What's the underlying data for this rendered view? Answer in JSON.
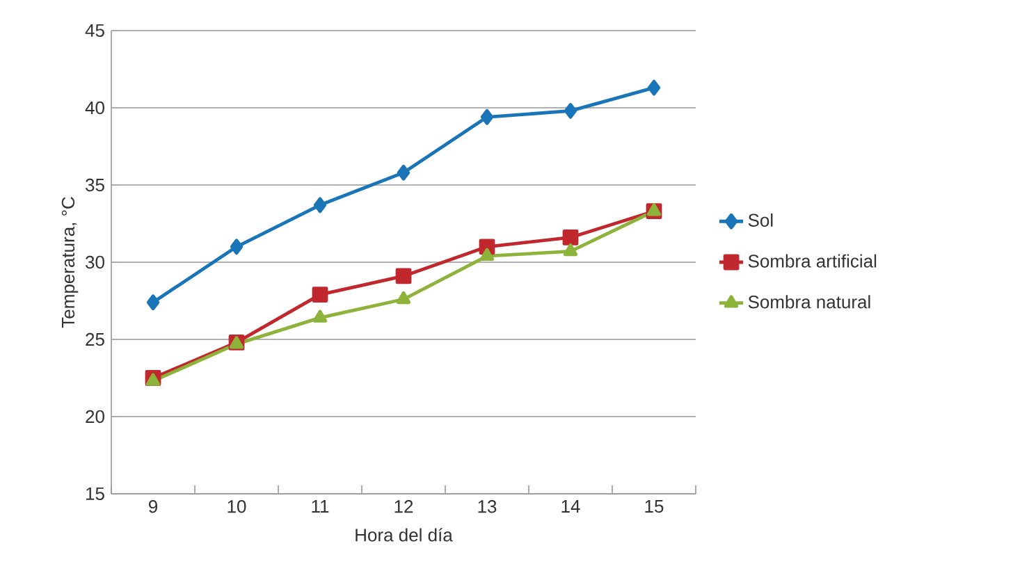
{
  "chart_data": {
    "type": "line",
    "xlabel": "Hora del día",
    "ylabel": "Temperatura, °C",
    "categories": [
      "9",
      "10",
      "11",
      "12",
      "13",
      "14",
      "15"
    ],
    "series": [
      {
        "name": "Sol",
        "color": "#1a75b8",
        "marker": "diamond",
        "values": [
          27.4,
          31.0,
          33.7,
          35.8,
          39.4,
          39.8,
          41.3
        ]
      },
      {
        "name": "Sombra artificial",
        "color": "#c0282e",
        "marker": "square",
        "values": [
          22.5,
          24.8,
          27.9,
          29.1,
          31.0,
          31.6,
          33.3
        ]
      },
      {
        "name": "Sombra natural",
        "color": "#8db33a",
        "marker": "triangle",
        "values": [
          22.3,
          24.7,
          26.4,
          27.6,
          30.4,
          30.7,
          33.3
        ]
      }
    ],
    "ylim": [
      15,
      45
    ],
    "yticks": [
      15,
      20,
      25,
      30,
      35,
      40,
      45
    ],
    "grid": "y",
    "legend": "right",
    "line_style": "solid"
  }
}
